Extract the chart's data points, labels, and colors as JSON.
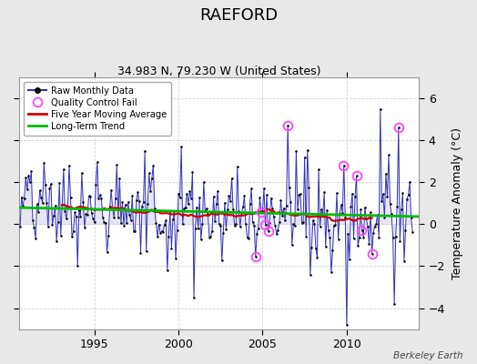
{
  "title": "RAEFORD",
  "subtitle": "34.983 N, 79.230 W (United States)",
  "ylabel": "Temperature Anomaly (°C)",
  "credit": "Berkeley Earth",
  "ylim": [
    -5.0,
    7.0
  ],
  "xlim": [
    1990.5,
    2014.3
  ],
  "yticks": [
    -4,
    -2,
    0,
    2,
    4,
    6
  ],
  "xticks": [
    1995,
    2000,
    2005,
    2010
  ],
  "bg_color": "#e8e8e8",
  "plot_bg_color": "#ffffff",
  "line_color": "#3333bb",
  "fill_color": "#aaaadd",
  "ma_color": "#cc0000",
  "trend_color": "#00bb00",
  "dot_color": "#000000",
  "qc_color": "#ff44ff",
  "title_fontsize": 13,
  "subtitle_fontsize": 9,
  "axis_fontsize": 9,
  "trend_slope": -0.018,
  "trend_intercept_at2000": 0.62,
  "trend_start": 1990.5,
  "trend_end": 2014.3,
  "qc_indices_approx": [
    [
      2006.5,
      4.7
    ],
    [
      2013.1,
      4.6
    ],
    [
      2009.8,
      2.8
    ],
    [
      2010.6,
      2.3
    ],
    [
      2010.9,
      -0.3
    ],
    [
      2004.6,
      -1.55
    ],
    [
      2004.9,
      0.6
    ],
    [
      2005.15,
      -0.05
    ],
    [
      2005.35,
      -0.35
    ],
    [
      2011.5,
      -1.4
    ]
  ]
}
